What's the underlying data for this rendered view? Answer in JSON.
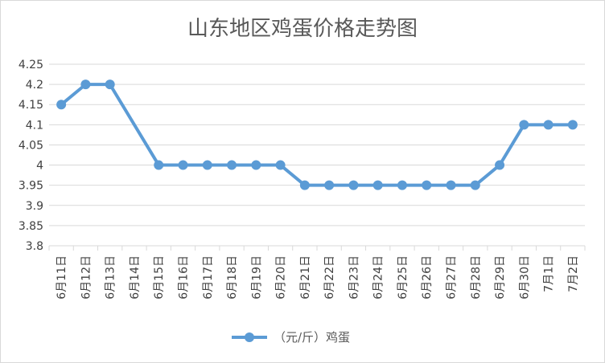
{
  "chart_data": {
    "type": "line",
    "title": "山东地区鸡蛋价格走势图",
    "xlabel": "",
    "ylabel": "",
    "categories": [
      "6月11日",
      "6月12日",
      "6月13日",
      "6月14日",
      "6月15日",
      "6月16日",
      "6月17日",
      "6月18日",
      "6月19日",
      "6月20日",
      "6月21日",
      "6月22日",
      "6月23日",
      "6月24日",
      "6月25日",
      "6月26日",
      "6月27日",
      "6月28日",
      "6月29日",
      "6月30日",
      "7月1日",
      "7月2日"
    ],
    "yticks": [
      "3.8",
      "3.85",
      "3.9",
      "3.95",
      "4",
      "4.05",
      "4.1",
      "4.15",
      "4.2",
      "4.25"
    ],
    "ylim": [
      3.8,
      4.25
    ],
    "grid": true,
    "legend_position": "bottom",
    "series": [
      {
        "name": "（元/斤）鸡蛋",
        "color": "#5b9bd5",
        "values": [
          4.15,
          4.2,
          4.2,
          null,
          4.0,
          4.0,
          4.0,
          4.0,
          4.0,
          4.0,
          3.95,
          3.95,
          3.95,
          3.95,
          3.95,
          3.95,
          3.95,
          3.95,
          4.0,
          4.1,
          4.1,
          4.1
        ]
      }
    ]
  }
}
